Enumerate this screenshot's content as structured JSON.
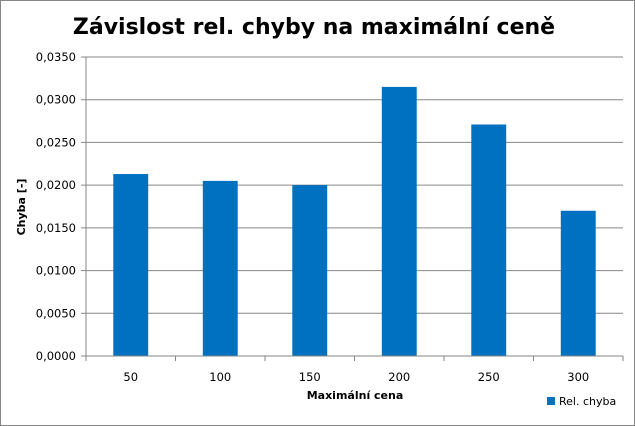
{
  "chart_data": {
    "type": "bar",
    "title": "Závislost rel. chyby na maximální ceně",
    "xlabel": "Maximální cena",
    "ylabel": "Chyba [-]",
    "categories": [
      "50",
      "100",
      "150",
      "200",
      "250",
      "300"
    ],
    "series": [
      {
        "name": "Rel. chyba",
        "values": [
          0.0213,
          0.0205,
          0.02,
          0.0315,
          0.0271,
          0.017
        ],
        "color": "#0070c0"
      }
    ],
    "ylim": [
      0,
      0.035
    ],
    "yticks": [
      "0,0000",
      "0,0050",
      "0,0100",
      "0,0150",
      "0,0200",
      "0,0250",
      "0,0300",
      "0,0350"
    ],
    "grid": true,
    "legend_position": "bottom-right"
  }
}
